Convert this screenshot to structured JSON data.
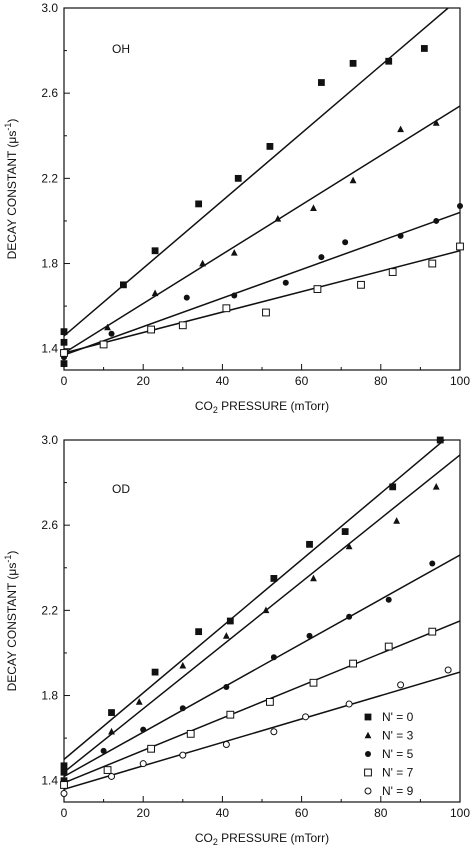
{
  "chart_data": [
    {
      "type": "scatter",
      "panel_label": "OH",
      "xlabel_main": "CO",
      "xlabel_sub": "2",
      "xlabel_rest": " PRESSURE (mTorr)",
      "ylabel": "DECAY CONSTANT (μs",
      "ylabel_sup": "-1",
      "ylabel_end": ")",
      "xlim": [
        0,
        100
      ],
      "ylim": [
        1.3,
        3.0
      ],
      "x_ticks": [
        "0",
        "20",
        "40",
        "60",
        "80",
        "100"
      ],
      "y_ticks": [
        "1.4",
        "1.8",
        "2.2",
        "2.6",
        "3.0"
      ],
      "series": [
        {
          "name": "N' = 0",
          "marker": "filled-square",
          "points": [
            [
              0,
              1.48
            ],
            [
              0,
              1.43
            ],
            [
              0,
              1.33
            ],
            [
              15,
              1.7
            ],
            [
              23,
              1.86
            ],
            [
              34,
              2.08
            ],
            [
              44,
              2.2
            ],
            [
              52,
              2.35
            ],
            [
              65,
              2.65
            ],
            [
              73,
              2.74
            ],
            [
              82,
              2.75
            ],
            [
              91,
              2.81
            ]
          ],
          "fit": [
            [
              0,
              1.46
            ],
            [
              97,
              3.0
            ]
          ]
        },
        {
          "name": "N' = 3",
          "marker": "filled-triangle",
          "points": [
            [
              0,
              1.38
            ],
            [
              11,
              1.5
            ],
            [
              23,
              1.66
            ],
            [
              35,
              1.8
            ],
            [
              43,
              1.85
            ],
            [
              54,
              2.01
            ],
            [
              63,
              2.06
            ],
            [
              73,
              2.19
            ],
            [
              85,
              2.43
            ],
            [
              94,
              2.46
            ]
          ],
          "fit": [
            [
              0,
              1.38
            ],
            [
              100,
              2.54
            ]
          ]
        },
        {
          "name": "N' = 5",
          "marker": "filled-circle",
          "points": [
            [
              0,
              1.36
            ],
            [
              12,
              1.47
            ],
            [
              31,
              1.64
            ],
            [
              43,
              1.65
            ],
            [
              56,
              1.71
            ],
            [
              65,
              1.83
            ],
            [
              71,
              1.9
            ],
            [
              85,
              1.93
            ],
            [
              94,
              2.0
            ],
            [
              100,
              2.07
            ]
          ],
          "fit": [
            [
              0,
              1.37
            ],
            [
              100,
              2.04
            ]
          ]
        },
        {
          "name": "N' = 7",
          "marker": "open-square",
          "points": [
            [
              0,
              1.38
            ],
            [
              10,
              1.42
            ],
            [
              22,
              1.49
            ],
            [
              30,
              1.51
            ],
            [
              41,
              1.59
            ],
            [
              51,
              1.57
            ],
            [
              64,
              1.68
            ],
            [
              75,
              1.7
            ],
            [
              83,
              1.76
            ],
            [
              93,
              1.8
            ],
            [
              100,
              1.88
            ]
          ],
          "fit": [
            [
              0,
              1.38
            ],
            [
              100,
              1.86
            ]
          ]
        }
      ]
    },
    {
      "type": "scatter",
      "panel_label": "OD",
      "xlabel_main": "CO",
      "xlabel_sub": "2",
      "xlabel_rest": " PRESSURE (mTorr)",
      "ylabel": "DECAY CONSTANT (μs",
      "ylabel_sup": "-1",
      "ylabel_end": ")",
      "xlim": [
        0,
        100
      ],
      "ylim": [
        1.3,
        3.0
      ],
      "x_ticks": [
        "0",
        "20",
        "40",
        "60",
        "80",
        "100"
      ],
      "y_ticks": [
        "1.4",
        "1.8",
        "2.2",
        "2.6",
        "3.0"
      ],
      "legend_position": "bottom-right",
      "series": [
        {
          "name": "N' = 0",
          "marker": "filled-square",
          "points": [
            [
              0,
              1.47
            ],
            [
              0,
              1.44
            ],
            [
              0,
              1.4
            ],
            [
              12,
              1.72
            ],
            [
              23,
              1.91
            ],
            [
              34,
              2.1
            ],
            [
              42,
              2.15
            ],
            [
              53,
              2.35
            ],
            [
              62,
              2.51
            ],
            [
              71,
              2.57
            ],
            [
              83,
              2.78
            ],
            [
              95,
              3.0
            ]
          ],
          "fit": [
            [
              0,
              1.5
            ],
            [
              96,
              3.0
            ]
          ]
        },
        {
          "name": "N' = 3",
          "marker": "filled-triangle",
          "points": [
            [
              0,
              1.38
            ],
            [
              12,
              1.63
            ],
            [
              19,
              1.77
            ],
            [
              30,
              1.94
            ],
            [
              41,
              2.08
            ],
            [
              51,
              2.2
            ],
            [
              63,
              2.35
            ],
            [
              72,
              2.5
            ],
            [
              84,
              2.62
            ],
            [
              94,
              2.78
            ]
          ],
          "fit": [
            [
              0,
              1.44
            ],
            [
              100,
              2.93
            ]
          ]
        },
        {
          "name": "N' = 5",
          "marker": "filled-circle",
          "points": [
            [
              0,
              1.38
            ],
            [
              10,
              1.54
            ],
            [
              20,
              1.64
            ],
            [
              30,
              1.74
            ],
            [
              41,
              1.84
            ],
            [
              53,
              1.98
            ],
            [
              62,
              2.08
            ],
            [
              72,
              2.17
            ],
            [
              82,
              2.25
            ],
            [
              93,
              2.42
            ]
          ],
          "fit": [
            [
              0,
              1.42
            ],
            [
              100,
              2.46
            ]
          ]
        },
        {
          "name": "N' = 7",
          "marker": "open-square",
          "points": [
            [
              0,
              1.38
            ],
            [
              11,
              1.45
            ],
            [
              22,
              1.55
            ],
            [
              32,
              1.62
            ],
            [
              42,
              1.71
            ],
            [
              52,
              1.77
            ],
            [
              63,
              1.86
            ],
            [
              73,
              1.95
            ],
            [
              82,
              2.03
            ],
            [
              93,
              2.1
            ]
          ],
          "fit": [
            [
              0,
              1.39
            ],
            [
              100,
              2.15
            ]
          ]
        },
        {
          "name": "N' = 9",
          "marker": "open-circle",
          "points": [
            [
              0,
              1.34
            ],
            [
              12,
              1.42
            ],
            [
              20,
              1.48
            ],
            [
              30,
              1.52
            ],
            [
              41,
              1.57
            ],
            [
              53,
              1.63
            ],
            [
              61,
              1.7
            ],
            [
              72,
              1.76
            ],
            [
              85,
              1.85
            ],
            [
              97,
              1.92
            ]
          ],
          "fit": [
            [
              0,
              1.36
            ],
            [
              100,
              1.91
            ]
          ]
        }
      ]
    }
  ]
}
